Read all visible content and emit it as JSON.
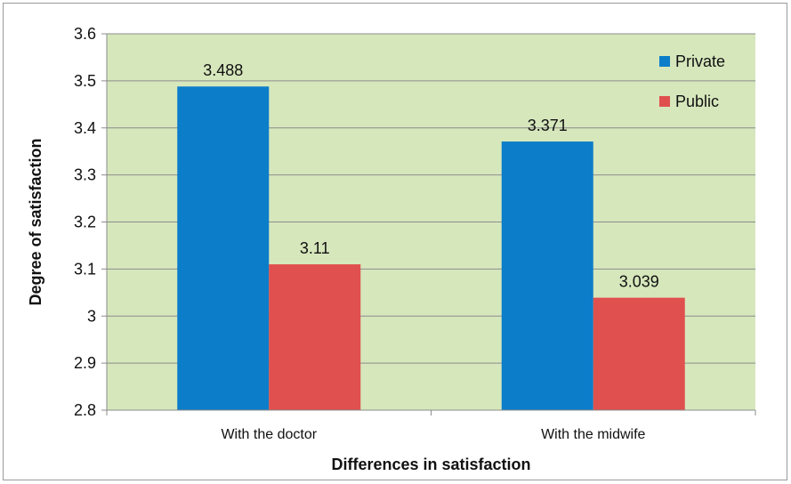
{
  "chart_data": {
    "type": "bar",
    "xlabel": "Differences in satisfaction",
    "ylabel": "Degree of satisfaction",
    "categories": [
      "With the doctor",
      "With the midwife"
    ],
    "series": [
      {
        "name": "Private",
        "values": [
          3.488,
          3.371
        ],
        "color": "#0b7dc9",
        "labels": [
          "3.488",
          "3.371"
        ]
      },
      {
        "name": "Public",
        "values": [
          3.11,
          3.039
        ],
        "color": "#e0504e",
        "labels": [
          "3.11",
          "3.039"
        ]
      }
    ],
    "ylim": [
      2.8,
      3.6
    ],
    "yticks": [
      2.8,
      2.9,
      3.0,
      3.1,
      3.2,
      3.3,
      3.4,
      3.5,
      3.6
    ],
    "ytick_labels": [
      "2.8",
      "2.9",
      "3",
      "3.1",
      "3.2",
      "3.3",
      "3.4",
      "3.5",
      "3.6"
    ],
    "grid": true,
    "plot_background": "#d6e7bc",
    "legend_position": "top-right"
  }
}
